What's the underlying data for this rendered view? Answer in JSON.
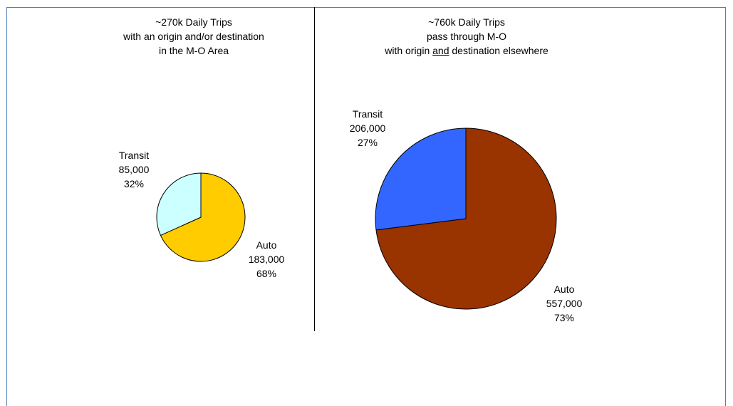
{
  "chart_data": [
    {
      "type": "pie",
      "title_lines": [
        "~270k Daily Trips",
        "with an origin and/or destination",
        "in the M-O Area"
      ],
      "slices": [
        {
          "label": "Transit",
          "value": 85000,
          "value_text": "85,000",
          "percent_text": "32%",
          "color": "#ccffff"
        },
        {
          "label": "Auto",
          "value": 183000,
          "value_text": "183,000",
          "percent_text": "68%",
          "color": "#ffcc00"
        }
      ]
    },
    {
      "type": "pie",
      "title_lines": [
        "~760k Daily Trips",
        "pass through M-O",
        "with origin ",
        "and",
        " destination elsewhere"
      ],
      "slices": [
        {
          "label": "Transit",
          "value": 206000,
          "value_text": "206,000",
          "percent_text": "27%",
          "color": "#3366ff"
        },
        {
          "label": "Auto",
          "value": 557000,
          "value_text": "557,000",
          "percent_text": "73%",
          "color": "#993300"
        }
      ]
    }
  ]
}
